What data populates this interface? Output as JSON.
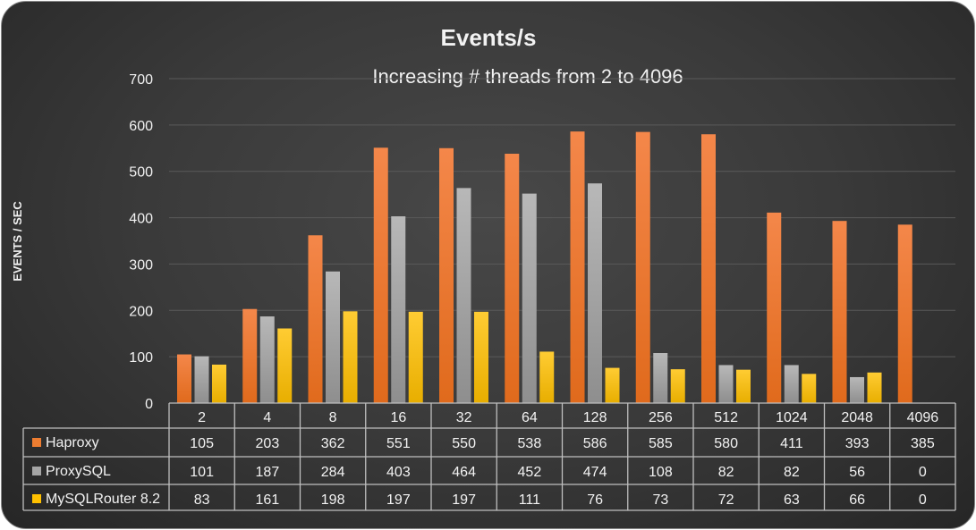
{
  "chart_data": {
    "type": "bar",
    "title": "Events/s",
    "subtitle": "Increasing # threads from 2 to 4096",
    "xlabel": "",
    "ylabel": "EVENTS / SEC",
    "ylim": [
      0,
      700
    ],
    "yticks": [
      0,
      100,
      200,
      300,
      400,
      500,
      600,
      700
    ],
    "grid": true,
    "legend": "data-table",
    "categories": [
      "2",
      "4",
      "8",
      "16",
      "32",
      "64",
      "128",
      "256",
      "512",
      "1024",
      "2048",
      "4096"
    ],
    "series": [
      {
        "name": "Haproxy",
        "color": "#ed7d31",
        "values": [
          105,
          203,
          362,
          551,
          550,
          538,
          586,
          585,
          580,
          411,
          393,
          385
        ]
      },
      {
        "name": "ProxySQL",
        "color": "#a5a5a5",
        "values": [
          101,
          187,
          284,
          403,
          464,
          452,
          474,
          108,
          82,
          82,
          56,
          0
        ]
      },
      {
        "name": "MySQLRouter 8.2",
        "color": "#ffc000",
        "values": [
          83,
          161,
          198,
          197,
          197,
          111,
          76,
          73,
          72,
          63,
          66,
          0
        ]
      }
    ]
  }
}
